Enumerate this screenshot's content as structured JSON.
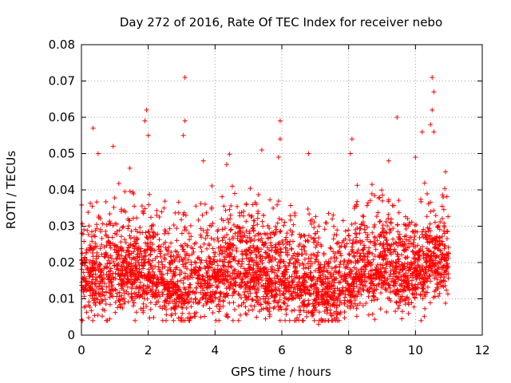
{
  "chart_data": {
    "type": "scatter",
    "title": "Day 272 of 2016, Rate Of TEC Index for receiver nebo",
    "xlabel": "GPS time / hours",
    "ylabel": "ROTI / TECUs",
    "xlim": [
      0,
      12
    ],
    "ylim": [
      0,
      0.08
    ],
    "x_ticks": [
      0,
      2,
      4,
      6,
      8,
      10,
      12
    ],
    "x_tick_labels": [
      "0",
      "2",
      "4",
      "6",
      "8",
      "10",
      "12"
    ],
    "y_ticks": [
      0,
      0.01,
      0.02,
      0.03,
      0.04,
      0.05,
      0.06,
      0.07,
      0.08
    ],
    "y_tick_labels": [
      "0",
      "0.01",
      "0.02",
      "0.03",
      "0.04",
      "0.05",
      "0.06",
      "0.07",
      "0.08"
    ],
    "grid": true,
    "marker": "plus",
    "color": "#ff0000",
    "data_x_range": [
      0.0,
      11.0
    ],
    "band_centers": [
      {
        "x": 0.0,
        "y": 0.014
      },
      {
        "x": 0.5,
        "y": 0.016
      },
      {
        "x": 1.0,
        "y": 0.017
      },
      {
        "x": 1.5,
        "y": 0.018
      },
      {
        "x": 2.0,
        "y": 0.017
      },
      {
        "x": 2.5,
        "y": 0.015
      },
      {
        "x": 3.0,
        "y": 0.012
      },
      {
        "x": 3.5,
        "y": 0.014
      },
      {
        "x": 4.0,
        "y": 0.016
      },
      {
        "x": 4.5,
        "y": 0.018
      },
      {
        "x": 5.0,
        "y": 0.017
      },
      {
        "x": 5.5,
        "y": 0.016
      },
      {
        "x": 6.0,
        "y": 0.015
      },
      {
        "x": 6.5,
        "y": 0.015
      },
      {
        "x": 7.0,
        "y": 0.013
      },
      {
        "x": 7.5,
        "y": 0.012
      },
      {
        "x": 8.0,
        "y": 0.015
      },
      {
        "x": 8.5,
        "y": 0.017
      },
      {
        "x": 9.0,
        "y": 0.019
      },
      {
        "x": 9.5,
        "y": 0.016
      },
      {
        "x": 10.0,
        "y": 0.017
      },
      {
        "x": 10.5,
        "y": 0.02
      },
      {
        "x": 11.0,
        "y": 0.02
      }
    ],
    "notable_points": [
      {
        "x": 0.35,
        "y": 0.057
      },
      {
        "x": 1.95,
        "y": 0.062
      },
      {
        "x": 1.9,
        "y": 0.059
      },
      {
        "x": 2.0,
        "y": 0.055
      },
      {
        "x": 3.1,
        "y": 0.071
      },
      {
        "x": 3.1,
        "y": 0.059
      },
      {
        "x": 3.05,
        "y": 0.055
      },
      {
        "x": 5.95,
        "y": 0.059
      },
      {
        "x": 5.95,
        "y": 0.054
      },
      {
        "x": 5.9,
        "y": 0.049
      },
      {
        "x": 8.1,
        "y": 0.054
      },
      {
        "x": 8.05,
        "y": 0.05
      },
      {
        "x": 9.45,
        "y": 0.06
      },
      {
        "x": 10.5,
        "y": 0.071
      },
      {
        "x": 10.55,
        "y": 0.067
      },
      {
        "x": 10.5,
        "y": 0.062
      },
      {
        "x": 10.45,
        "y": 0.058
      },
      {
        "x": 10.55,
        "y": 0.056
      },
      {
        "x": 10.2,
        "y": 0.056
      },
      {
        "x": 10.0,
        "y": 0.049
      },
      {
        "x": 0.5,
        "y": 0.05
      },
      {
        "x": 0.95,
        "y": 0.052
      },
      {
        "x": 6.8,
        "y": 0.05
      },
      {
        "x": 3.65,
        "y": 0.048
      },
      {
        "x": 4.35,
        "y": 0.047
      },
      {
        "x": 5.4,
        "y": 0.051
      },
      {
        "x": 7.1,
        "y": 0.003
      },
      {
        "x": 9.2,
        "y": 0.048
      },
      {
        "x": 10.9,
        "y": 0.045
      },
      {
        "x": 1.45,
        "y": 0.046
      }
    ]
  }
}
